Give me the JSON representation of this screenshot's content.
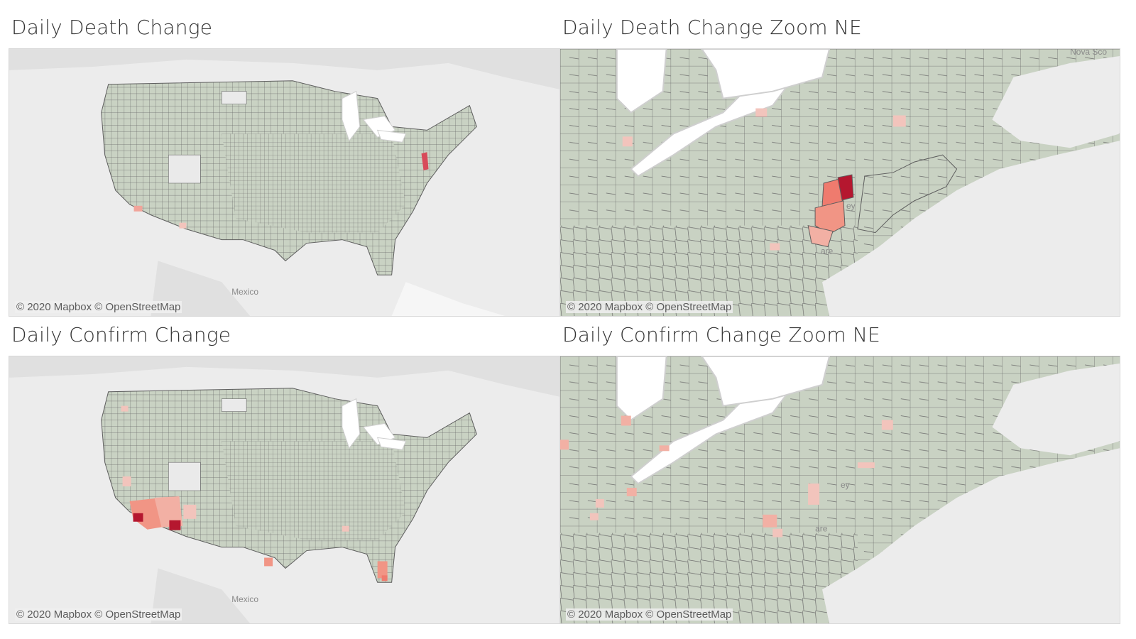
{
  "dashboard": {
    "panels": [
      {
        "id": "death-us",
        "title": "Daily Death Change",
        "credit": "© 2020 Mapbox © OpenStreetMap",
        "place_labels": [
          "Mexico"
        ]
      },
      {
        "id": "death-ne",
        "title": "Daily Death Change Zoom NE",
        "credit": "© 2020 Mapbox © OpenStreetMap",
        "place_labels": [
          "Nova Sco",
          "ey",
          "are"
        ]
      },
      {
        "id": "confirm-us",
        "title": "Daily Confirm Change",
        "credit": "© 2020 Mapbox © OpenStreetMap",
        "place_labels": [
          "Mexico"
        ]
      },
      {
        "id": "confirm-ne",
        "title": "Daily Confirm Change Zoom NE",
        "credit": "© 2020 Mapbox © OpenStreetMap",
        "place_labels": [
          "ey",
          "are"
        ]
      }
    ]
  },
  "colors": {
    "county_base": "#c9d2c3",
    "county_border": "#6b6b6b",
    "water": "#ffffff",
    "background_land": "#e3e3e3",
    "heat_low": "#f2c4bc",
    "heat_mid": "#ef7b6e",
    "heat_high": "#b5172f"
  }
}
